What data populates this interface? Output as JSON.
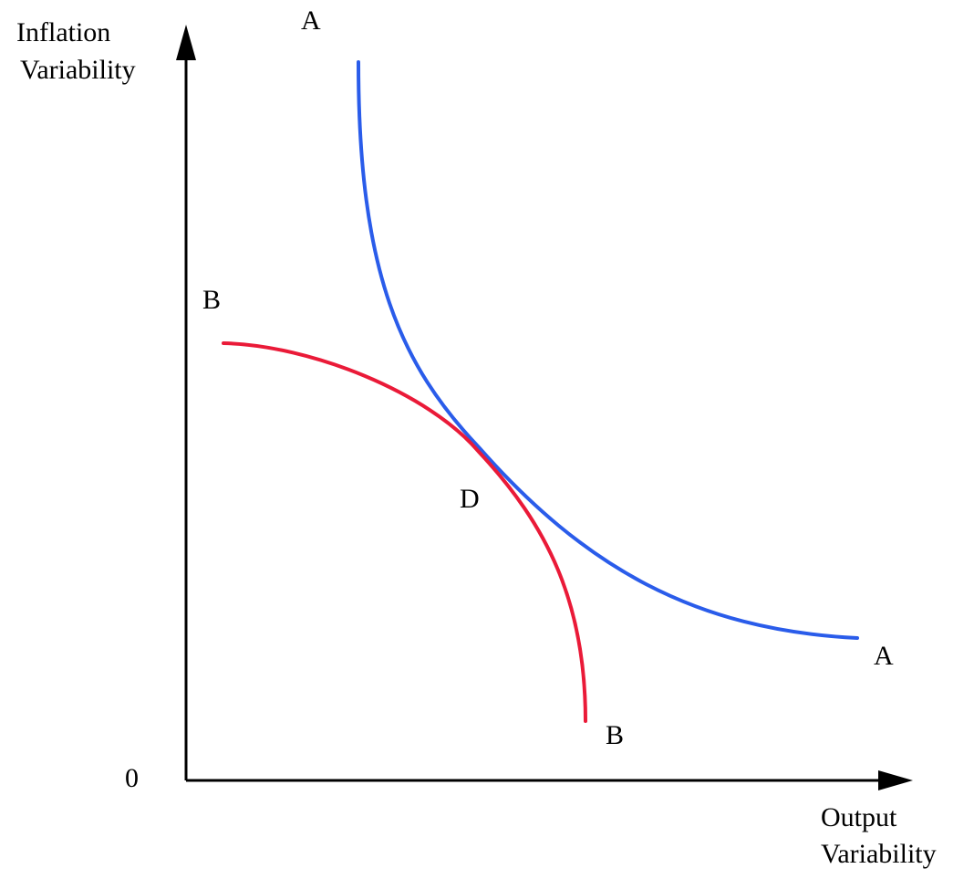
{
  "axes": {
    "y_label_line1": "Inflation",
    "y_label_line2": "Variability",
    "x_label_line1": "Output",
    "x_label_line2": "Variability",
    "origin_label": "0"
  },
  "curves": {
    "a_curve": {
      "label_start": "A",
      "label_end": "A",
      "color": "#2a5cea"
    },
    "b_curve": {
      "label_start": "B",
      "label_end": "B",
      "color": "#ea1a38"
    }
  },
  "point_d": {
    "label": "D"
  },
  "colors": {
    "axis": "#000000",
    "background": "#ffffff"
  }
}
